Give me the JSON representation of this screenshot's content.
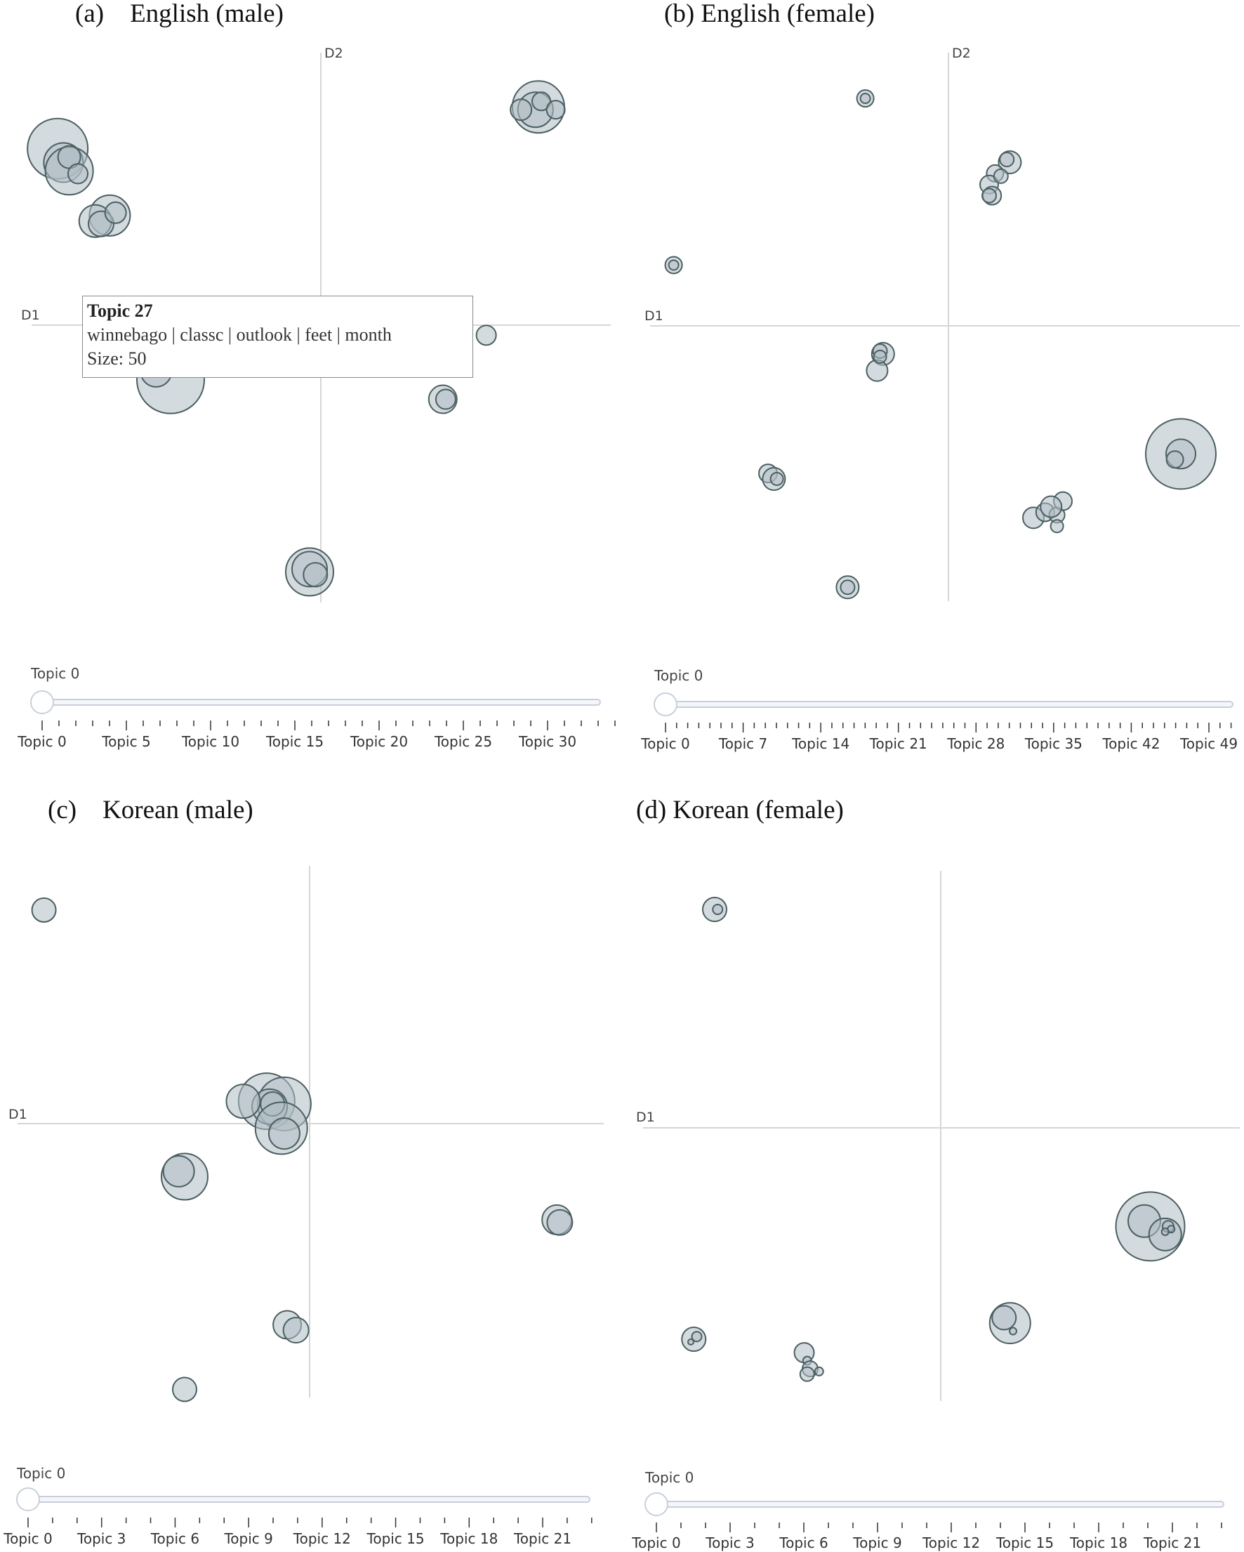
{
  "figure": {
    "panels": [
      {
        "title": "(a)    English (male)",
        "slider_label": "Topic 0"
      },
      {
        "title": "(b) English (female)",
        "slider_label": "Topic 0"
      },
      {
        "title": "(c)    Korean (male)",
        "slider_label": "Topic 0"
      },
      {
        "title": "(d) Korean (female)",
        "slider_label": "Topic 0"
      }
    ],
    "tooltip": {
      "title": "Topic 27",
      "words": "winnebago | classc | outlook | feet | month",
      "size": "Size: 50"
    },
    "colors": {
      "bubble_fill": "#b0bec5",
      "bubble_stroke": "#4b5f62",
      "axis": "#d6d6d6"
    }
  },
  "chart_data": [
    {
      "type": "scatter",
      "title": "(a)    English (male)",
      "xlabel": "D1",
      "ylabel": "D2",
      "xlim": [
        -1,
        1
      ],
      "ylim": [
        -1,
        1
      ],
      "slider": {
        "label": "Topic 0",
        "ticks": [
          "Topic 0",
          "Topic 5",
          "Topic 10",
          "Topic 15",
          "Topic 20",
          "Topic 25",
          "Topic 30"
        ],
        "minor_per_major": 5
      },
      "points": [
        {
          "x": -0.91,
          "y": 0.63,
          "r": 43
        },
        {
          "x": -0.89,
          "y": 0.58,
          "r": 28
        },
        {
          "x": -0.87,
          "y": 0.55,
          "r": 34
        },
        {
          "x": -0.87,
          "y": 0.6,
          "r": 16
        },
        {
          "x": -0.84,
          "y": 0.54,
          "r": 14
        },
        {
          "x": -0.73,
          "y": 0.39,
          "r": 29
        },
        {
          "x": -0.78,
          "y": 0.37,
          "r": 23
        },
        {
          "x": -0.76,
          "y": 0.36,
          "r": 18
        },
        {
          "x": -0.71,
          "y": 0.4,
          "r": 15
        },
        {
          "x": 0.75,
          "y": 0.78,
          "r": 37
        },
        {
          "x": 0.74,
          "y": 0.77,
          "r": 25
        },
        {
          "x": 0.69,
          "y": 0.77,
          "r": 15
        },
        {
          "x": 0.76,
          "y": 0.8,
          "r": 13
        },
        {
          "x": 0.81,
          "y": 0.77,
          "r": 13
        },
        {
          "x": -0.52,
          "y": -0.2,
          "r": 48
        },
        {
          "x": -0.57,
          "y": -0.17,
          "r": 22
        },
        {
          "x": 0.57,
          "y": -0.04,
          "r": 14
        },
        {
          "x": 0.42,
          "y": -0.27,
          "r": 20
        },
        {
          "x": 0.43,
          "y": -0.27,
          "r": 14
        },
        {
          "x": -0.04,
          "y": -0.89,
          "r": 34
        },
        {
          "x": -0.04,
          "y": -0.88,
          "r": 25
        },
        {
          "x": -0.02,
          "y": -0.9,
          "r": 17
        }
      ]
    },
    {
      "type": "scatter",
      "title": "(b) English (female)",
      "xlabel": "D1",
      "ylabel": "D2",
      "xlim": [
        -1,
        1
      ],
      "ylim": [
        -1,
        1
      ],
      "slider": {
        "label": "Topic 0",
        "ticks": [
          "Topic 0",
          "Topic 7",
          "Topic 14",
          "Topic 21",
          "Topic 28",
          "Topic 35",
          "Topic 42",
          "Topic 49"
        ],
        "minor_per_major": 7
      },
      "points": [
        {
          "x": -0.27,
          "y": 0.81,
          "r": 12
        },
        {
          "x": -0.27,
          "y": 0.81,
          "r": 7
        },
        {
          "x": 0.22,
          "y": 0.58,
          "r": 16
        },
        {
          "x": 0.17,
          "y": 0.54,
          "r": 12
        },
        {
          "x": 0.15,
          "y": 0.5,
          "r": 13
        },
        {
          "x": 0.16,
          "y": 0.46,
          "r": 13
        },
        {
          "x": 0.15,
          "y": 0.46,
          "r": 10
        },
        {
          "x": 0.19,
          "y": 0.53,
          "r": 10
        },
        {
          "x": 0.21,
          "y": 0.59,
          "r": 10
        },
        {
          "x": -0.92,
          "y": 0.21,
          "r": 12
        },
        {
          "x": -0.92,
          "y": 0.21,
          "r": 7
        },
        {
          "x": -0.21,
          "y": -0.11,
          "r": 16
        },
        {
          "x": -0.22,
          "y": -0.1,
          "r": 10
        },
        {
          "x": -0.23,
          "y": -0.17,
          "r": 15
        },
        {
          "x": -0.22,
          "y": -0.12,
          "r": 9
        },
        {
          "x": -0.6,
          "y": -0.54,
          "r": 13
        },
        {
          "x": -0.58,
          "y": -0.56,
          "r": 16
        },
        {
          "x": -0.57,
          "y": -0.56,
          "r": 9
        },
        {
          "x": 0.8,
          "y": -0.47,
          "r": 50
        },
        {
          "x": 0.8,
          "y": -0.47,
          "r": 21
        },
        {
          "x": 0.78,
          "y": -0.49,
          "r": 12
        },
        {
          "x": 0.3,
          "y": -0.7,
          "r": 15
        },
        {
          "x": 0.34,
          "y": -0.68,
          "r": 13
        },
        {
          "x": 0.38,
          "y": -0.69,
          "r": 11
        },
        {
          "x": 0.38,
          "y": -0.73,
          "r": 9
        },
        {
          "x": 0.4,
          "y": -0.64,
          "r": 13
        },
        {
          "x": 0.36,
          "y": -0.66,
          "r": 15
        },
        {
          "x": -0.33,
          "y": -0.95,
          "r": 16
        },
        {
          "x": -0.33,
          "y": -0.95,
          "r": 10
        }
      ]
    },
    {
      "type": "scatter",
      "title": "(c)    Korean (male)",
      "xlabel": "D1",
      "ylabel": "",
      "xlim": [
        -1,
        1
      ],
      "ylim": [
        -1,
        1
      ],
      "slider": {
        "label": "Topic 0",
        "ticks": [
          "Topic 0",
          "Topic 3",
          "Topic 6",
          "Topic 9",
          "Topic 12",
          "Topic 15",
          "Topic 18",
          "Topic 21"
        ],
        "minor_per_major": 3
      },
      "points": [
        {
          "x": -0.91,
          "y": 0.81,
          "r": 17
        },
        {
          "x": -0.15,
          "y": 0.1,
          "r": 40
        },
        {
          "x": -0.09,
          "y": 0.09,
          "r": 38
        },
        {
          "x": -0.14,
          "y": 0.08,
          "r": 25
        },
        {
          "x": -0.23,
          "y": 0.1,
          "r": 24
        },
        {
          "x": -0.13,
          "y": 0.09,
          "r": 17
        },
        {
          "x": -0.1,
          "y": 0.0,
          "r": 37
        },
        {
          "x": -0.09,
          "y": -0.02,
          "r": 22
        },
        {
          "x": -0.43,
          "y": -0.18,
          "r": 33
        },
        {
          "x": -0.45,
          "y": -0.16,
          "r": 22
        },
        {
          "x": 0.84,
          "y": -0.34,
          "r": 21
        },
        {
          "x": 0.85,
          "y": -0.35,
          "r": 18
        },
        {
          "x": -0.08,
          "y": -0.73,
          "r": 20
        },
        {
          "x": -0.05,
          "y": -0.75,
          "r": 18
        },
        {
          "x": -0.43,
          "y": -0.97,
          "r": 17
        }
      ]
    },
    {
      "type": "scatter",
      "title": "(d) Korean (female)",
      "xlabel": "D1",
      "ylabel": "",
      "xlim": [
        -1,
        1
      ],
      "ylim": [
        -1,
        1
      ],
      "slider": {
        "label": "Topic 0",
        "ticks": [
          "Topic 0",
          "Topic 3",
          "Topic 6",
          "Topic 9",
          "Topic 12",
          "Topic 15",
          "Topic 18",
          "Topic 21"
        ],
        "minor_per_major": 3
      },
      "points": [
        {
          "x": -0.76,
          "y": 0.83,
          "r": 17
        },
        {
          "x": -0.75,
          "y": 0.83,
          "r": 7
        },
        {
          "x": 0.7,
          "y": -0.35,
          "r": 49
        },
        {
          "x": 0.68,
          "y": -0.33,
          "r": 23
        },
        {
          "x": 0.75,
          "y": -0.38,
          "r": 23
        },
        {
          "x": 0.76,
          "y": -0.35,
          "r": 8
        },
        {
          "x": 0.77,
          "y": -0.36,
          "r": 5
        },
        {
          "x": 0.75,
          "y": -0.37,
          "r": 5
        },
        {
          "x": 0.23,
          "y": -0.71,
          "r": 29
        },
        {
          "x": 0.21,
          "y": -0.69,
          "r": 17
        },
        {
          "x": 0.24,
          "y": -0.74,
          "r": 5
        },
        {
          "x": -0.83,
          "y": -0.77,
          "r": 17
        },
        {
          "x": -0.82,
          "y": -0.76,
          "r": 7
        },
        {
          "x": -0.84,
          "y": -0.78,
          "r": 4
        },
        {
          "x": -0.46,
          "y": -0.82,
          "r": 14
        },
        {
          "x": -0.45,
          "y": -0.85,
          "r": 6
        },
        {
          "x": -0.44,
          "y": -0.88,
          "r": 11
        },
        {
          "x": -0.45,
          "y": -0.9,
          "r": 10
        },
        {
          "x": -0.41,
          "y": -0.89,
          "r": 6
        }
      ]
    }
  ]
}
